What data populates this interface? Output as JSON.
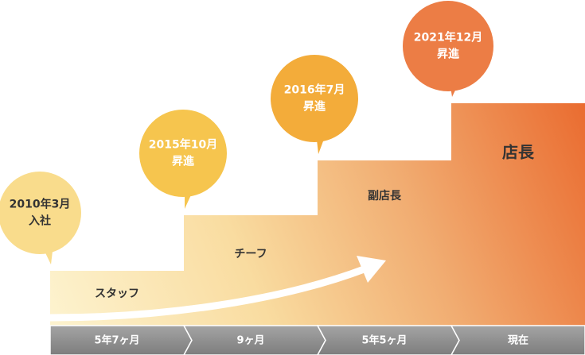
{
  "steps": [
    {
      "role": "スタッフ",
      "bubble_lines": [
        "2010年3月",
        "入社"
      ],
      "duration": "5年7ヶ月"
    },
    {
      "role": "チーフ",
      "bubble_lines": [
        "2015年10月",
        "昇進"
      ],
      "duration": "9ヶ月"
    },
    {
      "role": "副店長",
      "bubble_lines": [
        "2016年7月",
        "昇進"
      ],
      "duration": "5年5ヶ月"
    },
    {
      "role": "店長",
      "bubble_lines": [
        "2021年12月",
        "昇進"
      ],
      "duration": "現在"
    }
  ]
}
